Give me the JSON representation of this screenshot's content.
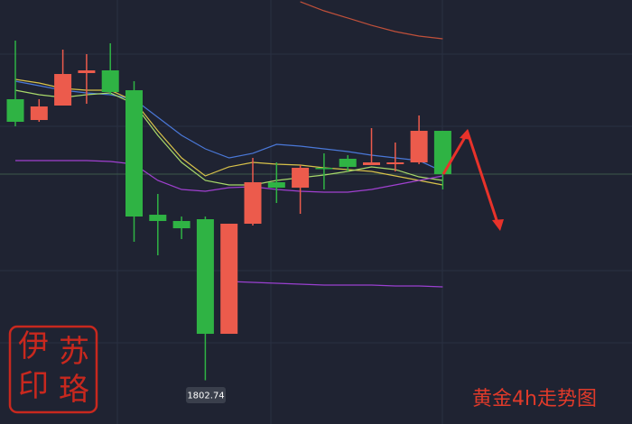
{
  "chart_data": {
    "type": "candlestick",
    "title": "黄金4h走势图",
    "up_color": "#ec5b4c",
    "down_color": "#2fb344",
    "open": [
      1854.67,
      1850.83,
      1853.5,
      1859.5,
      1860,
      1856.33,
      1833.33,
      1832.17,
      1832.5,
      1811.33,
      1831.67,
      1839.33,
      1838.33,
      1842,
      1843.67,
      1842.5,
      1842.67,
      1843,
      1848.83
    ],
    "high": [
      1865.5,
      1854.67,
      1863.83,
      1863,
      1865,
      1858,
      1837.17,
      1833,
      1833,
      1831.67,
      1843.83,
      1843,
      1842.5,
      1844.67,
      1844.33,
      1849.33,
      1846.67,
      1851.67,
      1848.83
    ],
    "low": [
      1849.67,
      1850.5,
      1853.5,
      1853.83,
      1855.5,
      1828.33,
      1825.83,
      1828.83,
      1802.74,
      1811.33,
      1831.33,
      1835.5,
      1833.5,
      1838,
      1841.33,
      1842.67,
      1841.33,
      1842.67,
      1838
    ],
    "close": [
      1850.5,
      1853.33,
      1859.33,
      1860,
      1856,
      1833,
      1832.17,
      1830.83,
      1811.33,
      1831.67,
      1839.33,
      1838.33,
      1842,
      1841.83,
      1842.17,
      1843,
      1843,
      1848.83,
      1840.83
    ],
    "series": [
      {
        "color": "#4a78d8",
        "values": [
          1858,
          1857.17,
          1856.33,
          1855.83,
          1855.5,
          1854.67,
          1851.33,
          1848,
          1845.5,
          1843.83,
          1844.67,
          1846.33,
          1846,
          1845.5,
          1845,
          1844.33,
          1843.83,
          1843.33,
          1841.33
        ]
      },
      {
        "color": "#d8c24a",
        "values": [
          1858.33,
          1857.67,
          1856.67,
          1856.33,
          1856.33,
          1854.33,
          1848.83,
          1843.83,
          1840.5,
          1842.17,
          1843,
          1842.67,
          1842.5,
          1842,
          1841.67,
          1841.33,
          1840.5,
          1839.67,
          1838.83
        ]
      },
      {
        "color": "#a8d86a",
        "values": [
          1856.33,
          1855.5,
          1855,
          1855.5,
          1855.83,
          1853.83,
          1848,
          1843,
          1839.67,
          1838.83,
          1838.83,
          1839.67,
          1840.17,
          1840.67,
          1841.33,
          1842.17,
          1841.67,
          1840.33,
          1839.67
        ]
      },
      {
        "color": "#a040d0",
        "values": [
          1843.33,
          1843.33,
          1843.33,
          1843.33,
          1843.17,
          1842.67,
          1839.67,
          1838,
          1837.67,
          1838.33,
          1838.5,
          1838,
          1837.67,
          1837.5,
          1837.5,
          1838,
          1838.83,
          1839.67,
          1840.5
        ]
      },
      {
        "color": "#9a40d0",
        "values": [
          null,
          null,
          null,
          null,
          null,
          null,
          null,
          null,
          null,
          1821,
          1820.83,
          1820.67,
          1820.5,
          1820.33,
          1820.33,
          1820.33,
          1820.17,
          1820.17,
          1820
        ]
      },
      {
        "color": "#c0503a",
        "values": [
          null,
          null,
          null,
          null,
          null,
          null,
          null,
          null,
          null,
          null,
          null,
          null,
          1872.67,
          1871,
          1869.67,
          1868.33,
          1867.17,
          1866.33,
          1865.83
        ]
      }
    ],
    "ylim": [
      1795,
      1873
    ]
  },
  "watermark": [
    "伊",
    "苏",
    "印",
    "珞"
  ]
}
